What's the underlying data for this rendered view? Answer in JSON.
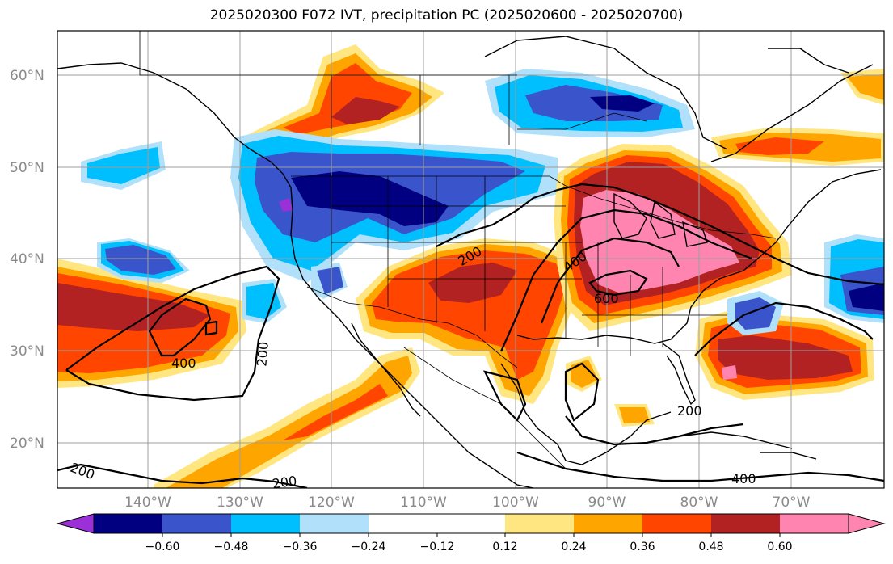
{
  "title": "2025020300 F072 IVT, precipitation PC (2025020600 - 2025020700)",
  "lat_labels": [
    "60°N",
    "50°N",
    "40°N",
    "30°N",
    "20°N"
  ],
  "lon_labels": [
    "140°W",
    "130°W",
    "120°W",
    "110°W",
    "100°W",
    "90°W",
    "80°W",
    "70°W"
  ],
  "contour_labels": [
    "200",
    "200",
    "200",
    "200",
    "200",
    "400",
    "400",
    "400",
    "600"
  ],
  "colorbar": {
    "ticks": [
      "−0.60",
      "−0.48",
      "−0.36",
      "−0.24",
      "−0.12",
      "0.12",
      "0.24",
      "0.36",
      "0.48",
      "0.60"
    ],
    "colors": [
      "#9b30d9",
      "#000080",
      "#3a55cc",
      "#00bfff",
      "#b0e0fa",
      "#ffffff",
      "#ffe680",
      "#ffa500",
      "#ff4500",
      "#b22222",
      "#ff85b0"
    ]
  },
  "colors": {
    "grid": "#9e9e9e",
    "coast": "#000000",
    "border": "#000000",
    "contour": "#000000"
  }
}
